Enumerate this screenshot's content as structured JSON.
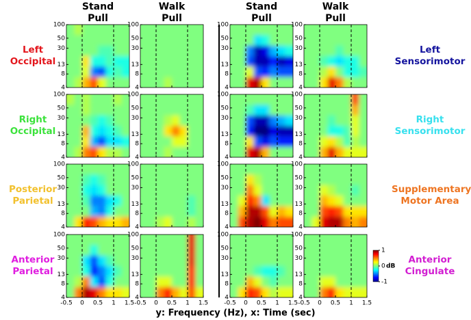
{
  "chart_data": {
    "type": "heatmap",
    "column_titles": [
      "Stand Pull",
      "Walk Pull",
      "Stand Pull",
      "Walk Pull"
    ],
    "row_labels_left": [
      "Left Occipital",
      "Right Occipital",
      "Posterior Parietal",
      "Anterior Parietal"
    ],
    "row_label_colors_left": [
      "#e3151b",
      "#3be23b",
      "#f2c12e",
      "#e01ee0"
    ],
    "row_labels_right": [
      "Left Sensorimotor",
      "Right Sensorimotor",
      "Supplementary Motor Area",
      "Anterior Cingulate"
    ],
    "row_label_colors_right": [
      "#14149e",
      "#37e0ee",
      "#ee7522",
      "#d21ed2"
    ],
    "xlabel": "y: Frequency (Hz), x: Time (sec)",
    "xlim": [
      -0.5,
      1.5
    ],
    "xticks": [
      -0.5,
      0,
      0.5,
      1,
      1.5
    ],
    "ylim": [
      4,
      100
    ],
    "yticks": [
      4,
      8,
      13,
      30,
      50,
      100
    ],
    "log_y": true,
    "events": [
      0,
      1
    ],
    "xbins": [
      -0.5,
      -0.25,
      0,
      0.25,
      0.5,
      0.75,
      1,
      1.25,
      1.5
    ],
    "ybins": [
      4,
      6.8,
      11.7,
      20,
      34.2,
      58.5,
      100
    ],
    "colorbar": {
      "lim": [
        -1,
        1
      ],
      "ticks": [
        -1,
        0,
        1
      ],
      "label": "dB"
    },
    "panels": [
      {
        "values": [
          [
            0,
            0.1,
            0.4,
            0.6,
            0.2,
            0,
            0,
            0
          ],
          [
            0,
            0,
            0.2,
            -0.5,
            -0.6,
            -0.2,
            -0.1,
            -0.2
          ],
          [
            0,
            0,
            0.3,
            -0.2,
            -0.2,
            -0.1,
            -0.2,
            -0.2
          ],
          [
            0,
            0,
            0,
            0,
            -0.1,
            -0.1,
            0,
            0
          ],
          [
            0,
            0,
            0,
            0,
            0,
            0,
            0,
            0
          ],
          [
            0,
            0.1,
            0,
            0,
            0,
            0,
            0,
            0
          ]
        ]
      },
      {
        "values": [
          [
            0,
            0,
            0,
            0.1,
            0,
            0,
            0,
            0
          ],
          [
            0,
            0,
            0,
            0,
            0,
            0,
            0,
            0
          ],
          [
            0,
            0,
            0,
            0,
            0,
            0,
            0,
            0
          ],
          [
            0,
            0,
            0,
            0,
            0,
            0,
            0,
            0
          ],
          [
            0,
            0,
            0,
            0,
            0,
            0,
            0,
            0
          ],
          [
            0,
            0,
            0,
            0,
            0,
            0,
            0,
            0
          ]
        ]
      },
      {
        "values": [
          [
            0,
            0,
            0.8,
            0.9,
            0.3,
            0,
            0,
            0
          ],
          [
            0,
            0,
            0.2,
            -0.6,
            -0.7,
            -0.5,
            -0.6,
            -0.6
          ],
          [
            0,
            0,
            -0.6,
            -0.9,
            -0.9,
            -0.7,
            -0.9,
            -0.8
          ],
          [
            0,
            0,
            -0.5,
            -0.9,
            -0.8,
            -0.4,
            -0.3,
            -0.2
          ],
          [
            0,
            0,
            0,
            -0.3,
            -0.2,
            0,
            0,
            0
          ],
          [
            0,
            0,
            0,
            0,
            0,
            0,
            0,
            0
          ]
        ]
      },
      {
        "values": [
          [
            0,
            0,
            0.3,
            0.8,
            0.5,
            0.1,
            0,
            0
          ],
          [
            0,
            0,
            0.1,
            0.3,
            0,
            -0.2,
            -0.2,
            -0.1
          ],
          [
            0,
            0,
            -0.1,
            -0.2,
            -0.3,
            -0.2,
            -0.2,
            0
          ],
          [
            0,
            0,
            0,
            0,
            -0.1,
            0,
            0,
            0
          ],
          [
            0,
            0,
            0,
            0,
            0,
            0,
            0,
            0
          ],
          [
            0,
            0,
            0,
            0,
            0,
            0,
            0,
            0
          ]
        ]
      },
      {
        "values": [
          [
            0,
            0.1,
            0.5,
            0.6,
            0.3,
            0.1,
            0.1,
            0
          ],
          [
            0,
            0,
            0.3,
            -0.4,
            -0.6,
            -0.3,
            -0.3,
            -0.2
          ],
          [
            0,
            0,
            0.4,
            -0.2,
            -0.3,
            -0.2,
            -0.1,
            0
          ],
          [
            0,
            0,
            0,
            -0.1,
            -0.2,
            -0.1,
            0,
            0
          ],
          [
            0,
            0,
            0.1,
            0,
            0,
            0,
            0,
            0
          ],
          [
            0.1,
            0,
            0.1,
            0,
            0,
            0,
            0.1,
            0
          ]
        ]
      },
      {
        "values": [
          [
            0,
            0,
            0,
            0.1,
            0,
            0,
            0,
            0
          ],
          [
            0,
            0,
            0,
            0,
            0.2,
            0.2,
            0,
            0
          ],
          [
            0,
            0,
            0,
            0.3,
            0.5,
            0.3,
            0,
            0
          ],
          [
            0,
            0,
            0,
            0.1,
            0.2,
            0,
            0,
            0
          ],
          [
            0,
            0,
            0,
            0,
            0,
            0,
            0,
            0
          ],
          [
            0,
            0,
            0,
            0,
            0,
            0,
            0,
            0
          ]
        ]
      },
      {
        "values": [
          [
            0,
            0,
            0.8,
            0.9,
            0.4,
            0,
            0,
            0
          ],
          [
            0,
            0,
            0.3,
            -0.6,
            -0.8,
            -0.6,
            -0.7,
            -0.7
          ],
          [
            0,
            0,
            -0.7,
            -1,
            -1,
            -0.8,
            -0.9,
            -0.9
          ],
          [
            0,
            0,
            -0.6,
            -0.9,
            -0.9,
            -0.5,
            -0.4,
            -0.3
          ],
          [
            0,
            0,
            -0.1,
            -0.3,
            -0.3,
            0,
            0,
            0
          ],
          [
            0,
            0,
            0,
            0,
            0,
            0,
            0,
            0
          ]
        ]
      },
      {
        "values": [
          [
            0,
            0,
            0.4,
            0.8,
            0.4,
            0.2,
            0.2,
            0.2
          ],
          [
            0,
            0,
            0.2,
            0.3,
            0.1,
            -0.1,
            0.1,
            0
          ],
          [
            0,
            0,
            0,
            -0.2,
            -0.2,
            -0.1,
            0.2,
            0
          ],
          [
            0,
            0,
            0,
            -0.1,
            0,
            0,
            0.2,
            0
          ],
          [
            0,
            0,
            0,
            0,
            0,
            0,
            0.4,
            0
          ],
          [
            0,
            0,
            0,
            0,
            0,
            0,
            0.6,
            0
          ]
        ]
      },
      {
        "values": [
          [
            0,
            0.3,
            0.7,
            0.6,
            0.4,
            0.3,
            0.3,
            0.4
          ],
          [
            0,
            0,
            0,
            -0.4,
            -0.5,
            -0.2,
            0,
            0
          ],
          [
            0,
            0,
            -0.1,
            -0.5,
            -0.5,
            -0.3,
            -0.2,
            0
          ],
          [
            0,
            0,
            -0.2,
            -0.3,
            -0.2,
            0,
            0,
            0
          ],
          [
            0,
            0,
            -0.1,
            -0.2,
            -0.1,
            0,
            0,
            0
          ],
          [
            0,
            0,
            0,
            0,
            0,
            0,
            0,
            0
          ]
        ]
      },
      {
        "values": [
          [
            0,
            0,
            0.1,
            0.2,
            0,
            0,
            0.1,
            0
          ],
          [
            0,
            0,
            0,
            0,
            0,
            0,
            -0.1,
            0
          ],
          [
            0,
            0,
            0,
            0,
            0,
            0,
            -0.1,
            0
          ],
          [
            0,
            0,
            0,
            0,
            0,
            0,
            0,
            0
          ],
          [
            0,
            0,
            0,
            0,
            0,
            0,
            0,
            0
          ],
          [
            0,
            0,
            0,
            0,
            0,
            0,
            0,
            0
          ]
        ]
      },
      {
        "values": [
          [
            0,
            0.6,
            0.9,
            1,
            0.8,
            0.5,
            0.6,
            0.6
          ],
          [
            0,
            0.4,
            0.9,
            0.9,
            0.6,
            0.2,
            0.4,
            0.3
          ],
          [
            0,
            0.2,
            0.7,
            0.5,
            -0.3,
            0,
            0,
            0
          ],
          [
            0,
            0,
            0.5,
            0.2,
            0,
            0,
            0,
            0
          ],
          [
            0,
            0,
            0.3,
            0.1,
            0,
            0,
            0,
            0
          ],
          [
            0,
            0,
            0,
            0,
            0,
            0,
            0,
            0
          ]
        ]
      },
      {
        "values": [
          [
            0,
            0.2,
            0.8,
            0.9,
            0.9,
            0.5,
            0.4,
            0.5
          ],
          [
            0,
            0,
            0.6,
            0.7,
            0.6,
            0.3,
            0.3,
            0.3
          ],
          [
            0,
            0,
            0.4,
            0.3,
            0.2,
            0,
            0,
            0
          ],
          [
            0,
            0,
            0.2,
            0.1,
            0,
            0,
            -0.1,
            0
          ],
          [
            0,
            0,
            0,
            0,
            0,
            0,
            0,
            0
          ],
          [
            0,
            0,
            0,
            0,
            0,
            0,
            0,
            0
          ]
        ]
      },
      {
        "values": [
          [
            0,
            0.5,
            0.9,
            0.8,
            0.5,
            0.3,
            0.3,
            0.2
          ],
          [
            0,
            0.1,
            0.5,
            -0.3,
            -0.6,
            -0.2,
            0,
            0
          ],
          [
            0,
            0,
            -0.2,
            -0.7,
            -0.5,
            -0.3,
            -0.1,
            0
          ],
          [
            0,
            0,
            -0.3,
            -0.6,
            -0.3,
            -0.1,
            0,
            0
          ],
          [
            0,
            0,
            0,
            -0.2,
            0,
            0,
            0,
            0
          ],
          [
            0,
            0,
            0,
            0,
            0,
            0,
            0,
            0
          ]
        ]
      },
      {
        "values": [
          [
            0,
            0,
            0.5,
            0.7,
            0.4,
            0.2,
            0.6,
            0.2
          ],
          [
            0,
            0,
            0.2,
            0.2,
            0,
            0,
            0.7,
            0
          ],
          [
            0,
            0,
            0,
            0,
            0,
            0,
            0.7,
            0
          ],
          [
            0,
            0,
            0,
            0,
            0,
            0,
            0.8,
            0
          ],
          [
            0,
            0,
            0,
            0,
            0,
            0,
            0.8,
            0
          ],
          [
            0,
            0,
            0,
            0,
            0,
            0,
            0.8,
            0
          ]
        ]
      },
      {
        "values": [
          [
            0,
            0.3,
            0.7,
            0.6,
            0.3,
            0.1,
            0.2,
            0.2
          ],
          [
            0,
            0,
            0.4,
            0.2,
            0,
            -0.1,
            0,
            0
          ],
          [
            0,
            0,
            0,
            -0.1,
            -0.2,
            -0.2,
            -0.1,
            0
          ],
          [
            0,
            0,
            0,
            0,
            0,
            0,
            0,
            0
          ],
          [
            0,
            0,
            0,
            0,
            0,
            0,
            0,
            0
          ],
          [
            0,
            0,
            0,
            0,
            0,
            0,
            0,
            0
          ]
        ]
      },
      {
        "values": [
          [
            0,
            0,
            0.5,
            0.7,
            0.3,
            0.2,
            0.2,
            0.2
          ],
          [
            0,
            0,
            0.2,
            0.2,
            0,
            0,
            0,
            0
          ],
          [
            0,
            0,
            0,
            0,
            0,
            0,
            0,
            0
          ],
          [
            0,
            0,
            0,
            0,
            0,
            0,
            0,
            0
          ],
          [
            0,
            0,
            0,
            0,
            0,
            0,
            0,
            0
          ],
          [
            0,
            0,
            0,
            0,
            0,
            0,
            0,
            0
          ]
        ]
      }
    ]
  }
}
